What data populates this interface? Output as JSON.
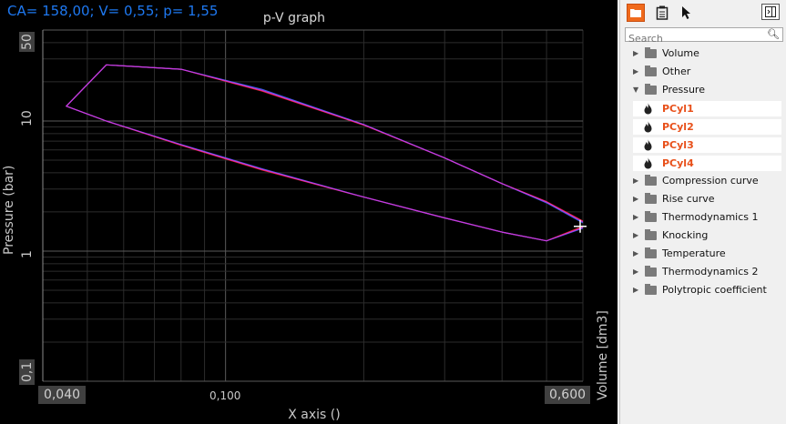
{
  "readout": "CA= 158,00; V= 0,55; p= 1,55",
  "title": "p-V graph",
  "y_axis": {
    "label": "Pressure (bar)",
    "ticks": [
      "50",
      "10",
      "1",
      "0,1"
    ]
  },
  "x_axis": {
    "label": "X axis ()",
    "tick_left": "0,040",
    "tick_mid": "0,100",
    "tick_right": "0,600"
  },
  "secondary_axis_label": "Volume [dm3]",
  "chart_data": {
    "type": "line",
    "title": "p-V graph",
    "xlabel": "X axis ()",
    "ylabel": "Pressure (bar)",
    "y2label": "Volume [dm3]",
    "x_scale": "log",
    "y_scale": "log",
    "xlim": [
      0.04,
      0.6
    ],
    "ylim": [
      0.1,
      50
    ],
    "grid": true,
    "series": [
      {
        "color": "#ff2a2a",
        "x": [
          0.6,
          0.5,
          0.4,
          0.3,
          0.2,
          0.12,
          0.08,
          0.055,
          0.045,
          0.055,
          0.08,
          0.12,
          0.2,
          0.3,
          0.4,
          0.5,
          0.6
        ],
        "y": [
          1.7,
          2.4,
          3.3,
          5.2,
          9.3,
          17,
          25,
          27,
          13,
          10,
          6.5,
          4.2,
          2.6,
          1.8,
          1.4,
          1.2,
          1.55
        ]
      },
      {
        "color": "#3a6bff",
        "x": [
          0.6,
          0.5,
          0.4,
          0.3,
          0.2,
          0.12,
          0.08,
          0.055,
          0.045,
          0.055,
          0.08,
          0.12,
          0.2,
          0.3,
          0.4,
          0.5,
          0.6
        ],
        "y": [
          1.65,
          2.35,
          3.3,
          5.2,
          9.4,
          17.5,
          25,
          27,
          13,
          10,
          6.6,
          4.3,
          2.6,
          1.8,
          1.4,
          1.2,
          1.5
        ]
      },
      {
        "color": "#d633e0",
        "x": [
          0.6,
          0.5,
          0.4,
          0.3,
          0.2,
          0.12,
          0.08,
          0.055,
          0.045,
          0.055,
          0.08,
          0.12,
          0.2,
          0.3,
          0.4,
          0.5,
          0.6
        ],
        "y": [
          1.68,
          2.38,
          3.3,
          5.2,
          9.35,
          17.2,
          25,
          27,
          13,
          10,
          6.55,
          4.25,
          2.6,
          1.8,
          1.4,
          1.2,
          1.52
        ]
      }
    ]
  },
  "sidebar": {
    "toolbar": [
      {
        "icon": "folder-tree-icon",
        "active": true
      },
      {
        "icon": "clipboard-icon"
      },
      {
        "icon": "pointer-icon"
      },
      {
        "icon": "panel-toggle-icon"
      }
    ],
    "search_placeholder": "Search",
    "items": [
      {
        "label": "Volume",
        "expanded": false
      },
      {
        "label": "Other",
        "expanded": false
      },
      {
        "label": "Pressure",
        "expanded": true
      },
      {
        "label": "Compression curve",
        "expanded": false
      },
      {
        "label": "Rise curve",
        "expanded": false
      },
      {
        "label": "Thermodynamics 1",
        "expanded": false
      },
      {
        "label": "Knocking",
        "expanded": false
      },
      {
        "label": "Temperature",
        "expanded": false
      },
      {
        "label": "Thermodynamics 2",
        "expanded": false
      },
      {
        "label": "Polytropic coefficient",
        "expanded": false
      }
    ],
    "pressure_children": [
      "PCyl1",
      "PCyl2",
      "PCyl3",
      "PCyl4"
    ]
  }
}
